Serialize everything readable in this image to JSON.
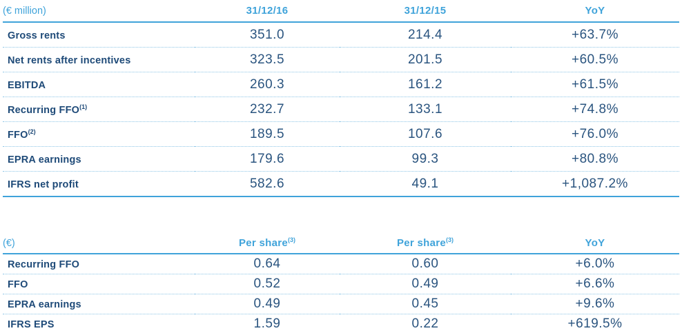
{
  "colors": {
    "accent_blue": "#3fa3da",
    "label_navy": "#1e4a78",
    "value_navy": "#2a547f",
    "dotted_rule": "#8cc5e6",
    "pale_rule": "#a7d3e9",
    "background": "#ffffff"
  },
  "table1": {
    "unit": "(€ million)",
    "headers": [
      {
        "text": "31/12/16",
        "sup": ""
      },
      {
        "text": "31/12/15",
        "sup": ""
      },
      {
        "text": "YoY",
        "sup": ""
      }
    ],
    "rows": [
      {
        "label": "Gross rents",
        "sup": "",
        "v1": "351.0",
        "v2": "214.4",
        "yoy": "+63.7%"
      },
      {
        "label": "Net rents after incentives",
        "sup": "",
        "v1": "323.5",
        "v2": "201.5",
        "yoy": "+60.5%"
      },
      {
        "label": "EBITDA",
        "sup": "",
        "v1": "260.3",
        "v2": "161.2",
        "yoy": "+61.5%"
      },
      {
        "label": "Recurring FFO",
        "sup": "(1)",
        "v1": "232.7",
        "v2": "133.1",
        "yoy": "+74.8%"
      },
      {
        "label": "FFO",
        "sup": "(2)",
        "v1": "189.5",
        "v2": "107.6",
        "yoy": "+76.0%"
      },
      {
        "label": "EPRA earnings",
        "sup": "",
        "v1": "179.6",
        "v2": "99.3",
        "yoy": "+80.8%"
      },
      {
        "label": "IFRS net profit",
        "sup": "",
        "v1": "582.6",
        "v2": "49.1",
        "yoy": "+1,087.2%"
      }
    ]
  },
  "table2": {
    "unit": "(€)",
    "headers": [
      {
        "text": "Per share",
        "sup": "(3)"
      },
      {
        "text": "Per share",
        "sup": "(3)"
      },
      {
        "text": "YoY",
        "sup": ""
      }
    ],
    "rows": [
      {
        "label": "Recurring FFO",
        "sup": "",
        "v1": "0.64",
        "v2": "0.60",
        "yoy": "+6.0%"
      },
      {
        "label": "FFO",
        "sup": "",
        "v1": "0.52",
        "v2": "0.49",
        "yoy": "+6.6%"
      },
      {
        "label": "EPRA earnings",
        "sup": "",
        "v1": "0.49",
        "v2": "0.45",
        "yoy": "+9.6%"
      },
      {
        "label": "IFRS EPS",
        "sup": "",
        "v1": "1.59",
        "v2": "0.22",
        "yoy": "+619.5%"
      }
    ]
  }
}
